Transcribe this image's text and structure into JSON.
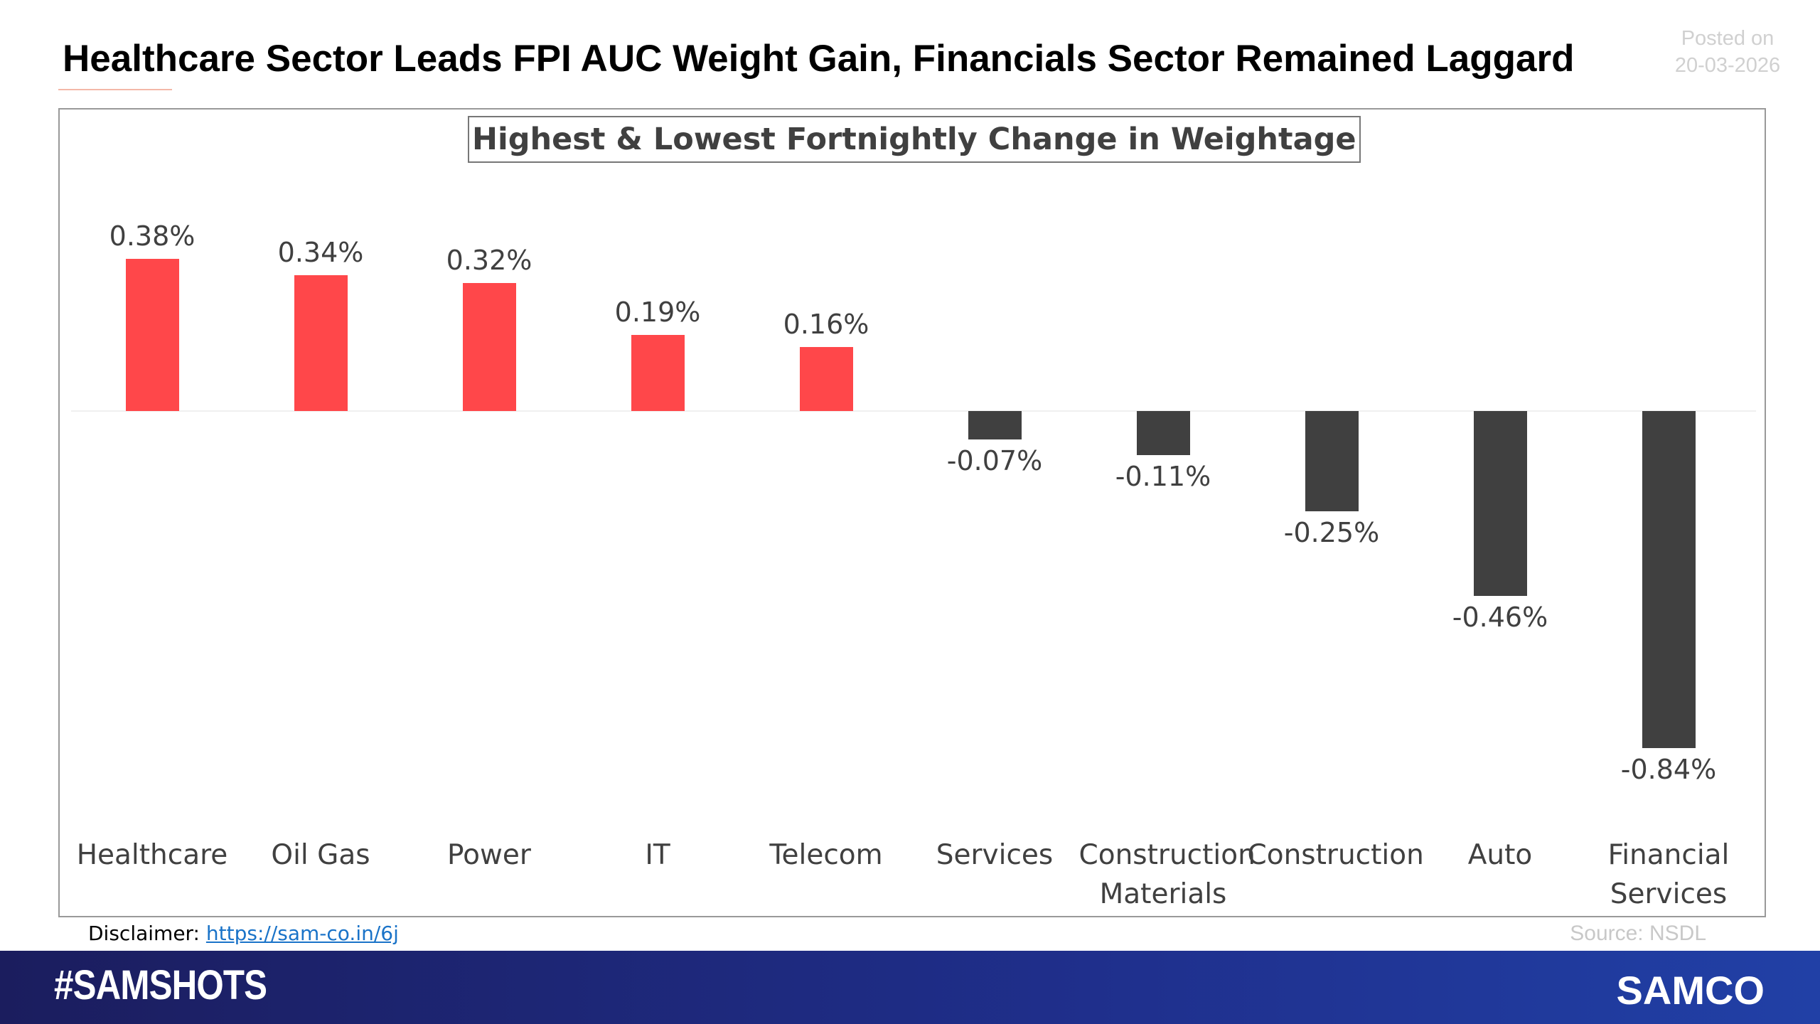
{
  "header": {
    "title": "Healthcare Sector Leads FPI AUC Weight Gain, Financials Sector Remained Laggard",
    "posted_label": "Posted on",
    "posted_date": "20-03-2026"
  },
  "chart_data": {
    "type": "bar",
    "title": "Highest & Lowest Fortnightly Change in Weightage",
    "categories": [
      "Healthcare",
      "Oil Gas",
      "Power",
      "IT",
      "Telecom",
      "Services",
      "Construction Materials",
      "Construction",
      "Auto",
      "Financial Services"
    ],
    "values": [
      0.38,
      0.34,
      0.32,
      0.19,
      0.16,
      -0.07,
      -0.11,
      -0.25,
      -0.46,
      -0.84
    ],
    "value_labels": [
      "0.38%",
      "0.34%",
      "0.32%",
      "0.19%",
      "0.16%",
      "-0.07%",
      "-0.11%",
      "-0.25%",
      "-0.46%",
      "-0.84%"
    ],
    "positive_color": "#ff474a",
    "negative_color": "#404040"
  },
  "footer": {
    "disclaimer_label": "Disclaimer:",
    "disclaimer_link": "https://sam-co.in/6j",
    "source": "Source: NSDL",
    "hashtag": "#SAMSHOTS",
    "brand": "SAMCO"
  }
}
